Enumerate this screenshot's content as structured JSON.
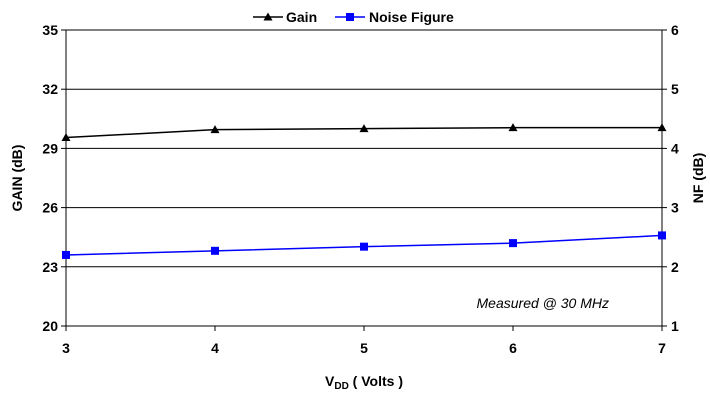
{
  "chart_data": {
    "type": "line",
    "x": [
      3,
      4,
      5,
      6,
      7
    ],
    "xlim": [
      3,
      7
    ],
    "x_ticks": [
      "3",
      "4",
      "5",
      "6",
      "7"
    ],
    "xlabel": {
      "main": "V",
      "sub": "DD",
      "rest": " ( Volts )"
    },
    "ylabel_left": "GAIN (dB)",
    "ylabel_right": "NF (dB)",
    "ylim_left": [
      20,
      35
    ],
    "ylim_right": [
      1,
      6
    ],
    "y_ticks_left": [
      "20",
      "23",
      "26",
      "29",
      "32",
      "35"
    ],
    "y_ticks_right": [
      "1",
      "2",
      "3",
      "4",
      "5",
      "6"
    ],
    "grid": "horizontal",
    "legend_position": "top-center",
    "annotation": "Measured @ 30 MHz",
    "series": [
      {
        "name": "Gain",
        "axis": "left",
        "color": "#000000",
        "marker": "triangle",
        "values": [
          29.55,
          29.95,
          30.0,
          30.05,
          30.05
        ]
      },
      {
        "name": "Noise Figure",
        "axis": "right",
        "color": "#0000ff",
        "marker": "square",
        "values": [
          2.2,
          2.27,
          2.34,
          2.4,
          2.53
        ]
      }
    ]
  }
}
